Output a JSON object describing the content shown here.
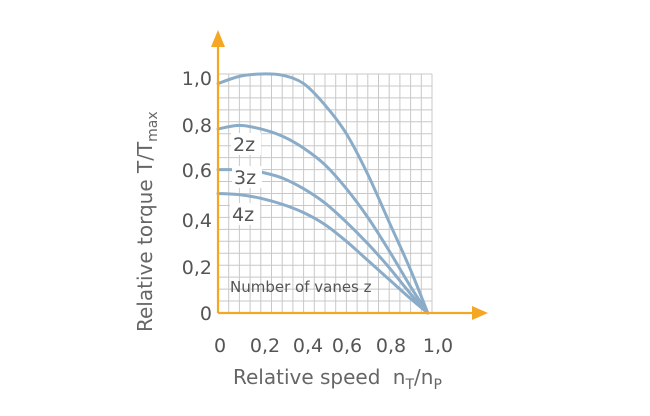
{
  "chart_data": {
    "type": "line",
    "xlabel": "Relative speed",
    "xlabel_var": "n",
    "xlabel_sub1": "T",
    "xlabel_slash": "/n",
    "xlabel_sub2": "P",
    "ylabel": "Relative torque T/T",
    "ylabel_sub": "max",
    "x_ticks": [
      "0",
      "0,2",
      "0,4",
      "0,6",
      "0,8",
      "1,0"
    ],
    "y_ticks": [
      "0",
      "0,2",
      "0,4",
      "0,6",
      "0,8",
      "1,0"
    ],
    "xlim": [
      0,
      1.0
    ],
    "ylim": [
      0,
      1.0
    ],
    "grid": true,
    "annotation": "Number of vanes z",
    "series": [
      {
        "name": "",
        "x": [
          0,
          0.1,
          0.2,
          0.3,
          0.4,
          0.5,
          0.6,
          0.7,
          0.8,
          0.9,
          0.98
        ],
        "y": [
          0.96,
          0.99,
          1.0,
          0.995,
          0.96,
          0.87,
          0.75,
          0.58,
          0.38,
          0.18,
          0.0
        ]
      },
      {
        "name": "2z",
        "x": [
          0,
          0.1,
          0.2,
          0.3,
          0.4,
          0.5,
          0.6,
          0.7,
          0.8,
          0.9,
          0.98
        ],
        "y": [
          0.77,
          0.785,
          0.77,
          0.74,
          0.69,
          0.62,
          0.52,
          0.4,
          0.26,
          0.11,
          0.0
        ]
      },
      {
        "name": "3z",
        "x": [
          0.14,
          0.2,
          0.3,
          0.4,
          0.5,
          0.6,
          0.7,
          0.8,
          0.9,
          0.98
        ],
        "y": [
          0.6,
          0.59,
          0.565,
          0.52,
          0.46,
          0.38,
          0.29,
          0.19,
          0.08,
          0.0
        ]
      },
      {
        "name": "4z",
        "x": [
          0,
          0.1,
          0.2,
          0.3,
          0.4,
          0.5,
          0.6,
          0.7,
          0.8,
          0.9,
          0.98
        ],
        "y": [
          0.5,
          0.495,
          0.48,
          0.455,
          0.42,
          0.37,
          0.3,
          0.22,
          0.14,
          0.06,
          0.0
        ]
      },
      {
        "name": "",
        "x": [
          0.0,
          0.14
        ],
        "y": [
          0.6,
          0.6
        ]
      }
    ],
    "colors": {
      "curve": "#8aacc8",
      "grid": "#c8c8c8",
      "axis": "#f5a623",
      "text": "#555555"
    }
  }
}
